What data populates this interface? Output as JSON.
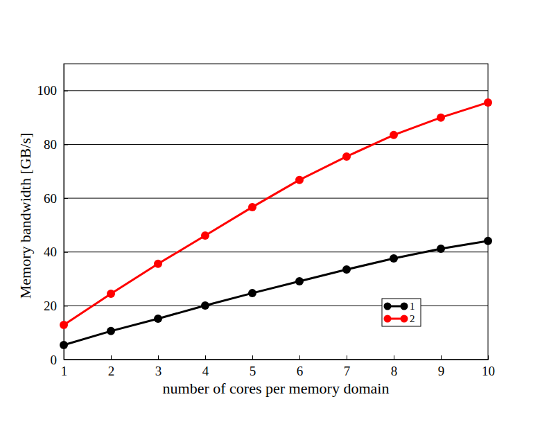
{
  "chart_data": {
    "type": "line",
    "x_label": "number of cores per memory domain",
    "y_label": "Memory bandwidth [GB/s]",
    "x": [
      1,
      2,
      3,
      4,
      5,
      6,
      7,
      8,
      9,
      10
    ],
    "series": [
      {
        "name": "1",
        "color": "#000000",
        "marker": "circle",
        "line_style": "solid",
        "values": [
          5.4,
          10.6,
          15.2,
          20.1,
          24.7,
          29.1,
          33.5,
          37.6,
          41.2,
          44.1
        ]
      },
      {
        "name": "2",
        "color": "#ff0000",
        "marker": "circle",
        "line_style": "solid",
        "values": [
          12.9,
          24.5,
          35.6,
          46.1,
          56.7,
          66.8,
          75.5,
          83.5,
          90.0,
          95.6
        ]
      }
    ],
    "xlim": [
      1,
      10
    ],
    "xticks": [
      1,
      2,
      3,
      4,
      5,
      6,
      7,
      8,
      9,
      10
    ],
    "ylim": [
      0,
      110
    ],
    "yticks": [
      0,
      20,
      40,
      60,
      80,
      100
    ],
    "grid": true,
    "legend": "lower right"
  }
}
